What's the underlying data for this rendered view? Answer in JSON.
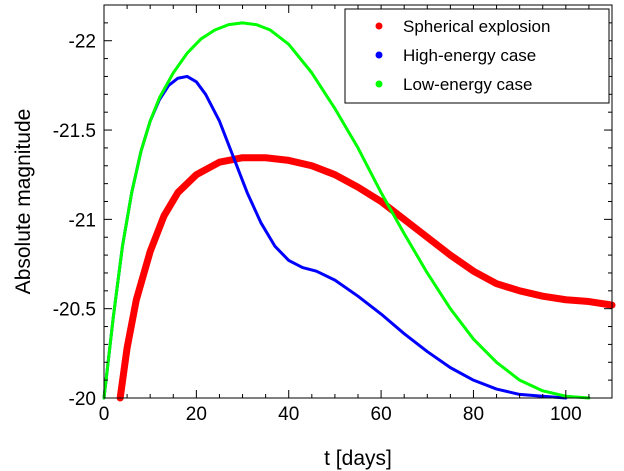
{
  "chart_data": {
    "type": "line",
    "title": "",
    "xlabel": "t [days]",
    "ylabel": "Absolute magnitude",
    "xlim": [
      0,
      110
    ],
    "ylim": [
      -20,
      -22.2
    ],
    "y_axis_inverted": true,
    "grid": false,
    "legend_position": "top-right",
    "x_ticks": [
      0,
      20,
      40,
      60,
      80,
      100
    ],
    "x_tick_labels": [
      "0",
      "20",
      "40",
      "60",
      "80",
      "100"
    ],
    "y_ticks": [
      -20,
      -20.5,
      -21,
      -21.5,
      -22
    ],
    "y_tick_labels": [
      "-20",
      "-20.5",
      "-21",
      "-21.5",
      "-22"
    ],
    "series": [
      {
        "name": "Spherical explosion",
        "color": "#ff0000",
        "points": [
          [
            3.5,
            -20
          ],
          [
            5,
            -20.28
          ],
          [
            7,
            -20.55
          ],
          [
            10,
            -20.82
          ],
          [
            13,
            -21.02
          ],
          [
            16,
            -21.15
          ],
          [
            20,
            -21.25
          ],
          [
            25,
            -21.32
          ],
          [
            30,
            -21.345
          ],
          [
            35,
            -21.345
          ],
          [
            40,
            -21.33
          ],
          [
            45,
            -21.3
          ],
          [
            50,
            -21.25
          ],
          [
            55,
            -21.18
          ],
          [
            60,
            -21.1
          ],
          [
            65,
            -21.0
          ],
          [
            70,
            -20.9
          ],
          [
            75,
            -20.8
          ],
          [
            80,
            -20.71
          ],
          [
            85,
            -20.64
          ],
          [
            90,
            -20.6
          ],
          [
            95,
            -20.57
          ],
          [
            100,
            -20.55
          ],
          [
            105,
            -20.54
          ],
          [
            110,
            -20.52
          ]
        ]
      },
      {
        "name": "High-energy case",
        "color": "#0000ff",
        "points": [
          [
            0,
            -20
          ],
          [
            2,
            -20.45
          ],
          [
            4,
            -20.85
          ],
          [
            6,
            -21.15
          ],
          [
            8,
            -21.38
          ],
          [
            10,
            -21.55
          ],
          [
            12,
            -21.67
          ],
          [
            14,
            -21.75
          ],
          [
            16,
            -21.79
          ],
          [
            18,
            -21.8
          ],
          [
            20,
            -21.77
          ],
          [
            22,
            -21.7
          ],
          [
            25,
            -21.55
          ],
          [
            28,
            -21.35
          ],
          [
            31,
            -21.15
          ],
          [
            34,
            -20.98
          ],
          [
            37,
            -20.85
          ],
          [
            40,
            -20.77
          ],
          [
            43,
            -20.73
          ],
          [
            46,
            -20.71
          ],
          [
            50,
            -20.66
          ],
          [
            55,
            -20.57
          ],
          [
            60,
            -20.47
          ],
          [
            65,
            -20.36
          ],
          [
            70,
            -20.26
          ],
          [
            75,
            -20.17
          ],
          [
            80,
            -20.1
          ],
          [
            85,
            -20.05
          ],
          [
            90,
            -20.02
          ],
          [
            95,
            -20.01
          ],
          [
            100,
            -20
          ]
        ]
      },
      {
        "name": "Low-energy case",
        "color": "#00ff00",
        "points": [
          [
            0,
            -20
          ],
          [
            2,
            -20.45
          ],
          [
            4,
            -20.85
          ],
          [
            6,
            -21.15
          ],
          [
            8,
            -21.38
          ],
          [
            10,
            -21.55
          ],
          [
            12,
            -21.68
          ],
          [
            15,
            -21.82
          ],
          [
            18,
            -21.93
          ],
          [
            21,
            -22.01
          ],
          [
            24,
            -22.06
          ],
          [
            27,
            -22.09
          ],
          [
            30,
            -22.1
          ],
          [
            33,
            -22.09
          ],
          [
            36,
            -22.06
          ],
          [
            40,
            -21.98
          ],
          [
            45,
            -21.82
          ],
          [
            50,
            -21.62
          ],
          [
            55,
            -21.4
          ],
          [
            60,
            -21.15
          ],
          [
            65,
            -20.92
          ],
          [
            70,
            -20.7
          ],
          [
            75,
            -20.5
          ],
          [
            80,
            -20.33
          ],
          [
            85,
            -20.2
          ],
          [
            90,
            -20.1
          ],
          [
            95,
            -20.04
          ],
          [
            100,
            -20.01
          ],
          [
            105,
            -20
          ]
        ]
      }
    ]
  }
}
